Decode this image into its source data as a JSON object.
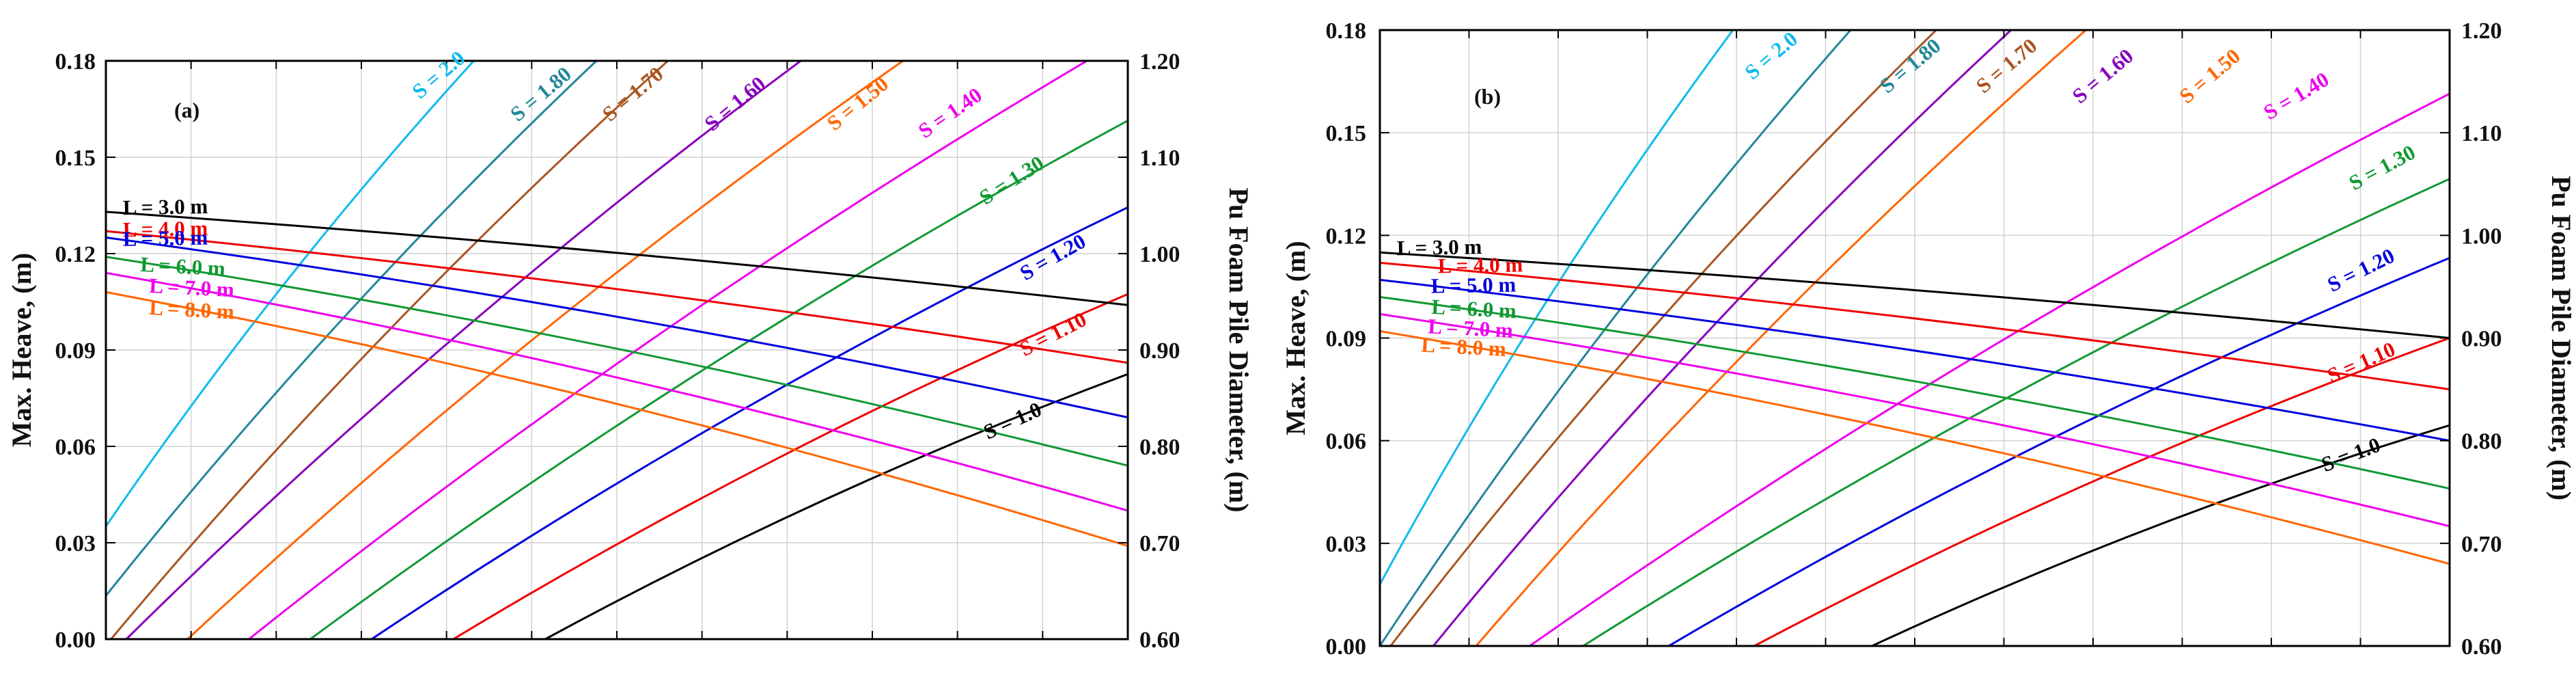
{
  "chart_data": [
    {
      "type": "line",
      "panel": "(a)",
      "ylabel": "Max. Heave, (m)",
      "y2label": "Pu Foam Pile Diameter, (m)",
      "xlabel": "",
      "x": [
        0,
        1
      ],
      "xlim": [
        0,
        1
      ],
      "ylim": [
        0,
        0.18
      ],
      "y2lim": [
        0.6,
        1.2
      ],
      "yticks": [
        "0.00",
        "0.03",
        "0.06",
        "0.09",
        "0.12",
        "0.15",
        "0.18"
      ],
      "y2ticks": [
        "0.60",
        "0.70",
        "0.80",
        "0.90",
        "1.00",
        "1.10",
        "1.20"
      ],
      "grid": true,
      "heave_series": [
        {
          "name": "L = 3.0 m",
          "color": "#000000",
          "values": [
            0.133,
            0.104
          ]
        },
        {
          "name": "L = 4.0 m",
          "color": "#ee0000",
          "values": [
            0.127,
            0.086
          ]
        },
        {
          "name": "L = 5.0 m",
          "color": "#0000dd",
          "values": [
            0.125,
            0.069
          ]
        },
        {
          "name": "L = 6.0 m",
          "color": "#119933",
          "values": [
            0.119,
            0.054
          ]
        },
        {
          "name": "L = 7.0 m",
          "color": "#ee00ee",
          "values": [
            0.114,
            0.04
          ]
        },
        {
          "name": "L = 8.0 m",
          "color": "#ff6600",
          "values": [
            0.108,
            0.029
          ]
        }
      ],
      "diameter_series": [
        {
          "name": "S = 2.0",
          "color": "#11bbee",
          "x": [
            0,
            0.36
          ],
          "values": [
            0.717,
            1.2
          ]
        },
        {
          "name": "S = 1.80",
          "color": "#228899",
          "x": [
            0,
            0.48
          ],
          "values": [
            0.645,
            1.2
          ]
        },
        {
          "name": "S = 1.70",
          "color": "#aa5522",
          "x": [
            0.005,
            0.55
          ],
          "values": [
            0.6,
            1.2
          ]
        },
        {
          "name": "S = 1.60",
          "color": "#8800bb",
          "x": [
            0.02,
            0.68
          ],
          "values": [
            0.6,
            1.2
          ]
        },
        {
          "name": "S = 1.50",
          "color": "#ff6600",
          "x": [
            0.08,
            0.78
          ],
          "values": [
            0.6,
            1.2
          ]
        },
        {
          "name": "S = 1.40",
          "color": "#ee00ee",
          "x": [
            0.14,
            0.96
          ],
          "values": [
            0.6,
            1.2
          ]
        },
        {
          "name": "S = 1.30",
          "color": "#119933",
          "x": [
            0.2,
            1.0
          ],
          "values": [
            0.6,
            1.138
          ]
        },
        {
          "name": "S = 1.20",
          "color": "#0000dd",
          "x": [
            0.26,
            1.0
          ],
          "values": [
            0.6,
            1.048
          ]
        },
        {
          "name": "S = 1.10",
          "color": "#ee0000",
          "x": [
            0.34,
            1.0
          ],
          "values": [
            0.6,
            0.958
          ]
        },
        {
          "name": "S = 1.0",
          "color": "#000000",
          "x": [
            0.43,
            1.0
          ],
          "values": [
            0.6,
            0.875
          ]
        }
      ]
    },
    {
      "type": "line",
      "panel": "(b)",
      "ylabel": "Max. Heave, (m)",
      "y2label": "Pu Foam Pile Diameter, (m)",
      "xlabel": "",
      "x": [
        0,
        1
      ],
      "xlim": [
        0,
        1
      ],
      "ylim": [
        0,
        0.18
      ],
      "y2lim": [
        0.6,
        1.2
      ],
      "yticks": [
        "0.00",
        "0.03",
        "0.06",
        "0.09",
        "0.12",
        "0.15",
        "0.18"
      ],
      "y2ticks": [
        "0.60",
        "0.70",
        "0.80",
        "0.90",
        "1.00",
        "1.10",
        "1.20"
      ],
      "grid": true,
      "heave_series": [
        {
          "name": "L = 3.0 m",
          "color": "#000000",
          "values": [
            0.115,
            0.09
          ]
        },
        {
          "name": "L = 4.0 m",
          "color": "#ee0000",
          "values": [
            0.112,
            0.075
          ]
        },
        {
          "name": "L = 5.0 m",
          "color": "#0000dd",
          "values": [
            0.107,
            0.06
          ]
        },
        {
          "name": "L = 6.0 m",
          "color": "#119933",
          "values": [
            0.102,
            0.046
          ]
        },
        {
          "name": "L = 7.0 m",
          "color": "#ee00ee",
          "values": [
            0.097,
            0.035
          ]
        },
        {
          "name": "L = 8.0 m",
          "color": "#ff6600",
          "values": [
            0.092,
            0.024
          ]
        }
      ],
      "diameter_series": [
        {
          "name": "S = 2.0",
          "color": "#11bbee",
          "x": [
            0,
            0.33
          ],
          "values": [
            0.66,
            1.2
          ]
        },
        {
          "name": "S = 1.80",
          "color": "#228899",
          "x": [
            0,
            0.44
          ],
          "values": [
            0.6,
            1.2
          ]
        },
        {
          "name": "S = 1.70",
          "color": "#aa5522",
          "x": [
            0.01,
            0.52
          ],
          "values": [
            0.6,
            1.2
          ]
        },
        {
          "name": "S = 1.60",
          "color": "#8800bb",
          "x": [
            0.05,
            0.59
          ],
          "values": [
            0.6,
            1.2
          ]
        },
        {
          "name": "S = 1.50",
          "color": "#ff6600",
          "x": [
            0.09,
            0.66
          ],
          "values": [
            0.6,
            1.2
          ]
        },
        {
          "name": "S = 1.40",
          "color": "#ee00ee",
          "x": [
            0.14,
            1.0
          ],
          "values": [
            0.6,
            1.138
          ]
        },
        {
          "name": "S = 1.30",
          "color": "#119933",
          "x": [
            0.19,
            1.0
          ],
          "values": [
            0.6,
            1.055
          ]
        },
        {
          "name": "S = 1.20",
          "color": "#0000dd",
          "x": [
            0.27,
            1.0
          ],
          "values": [
            0.6,
            0.978
          ]
        },
        {
          "name": "S = 1.10",
          "color": "#ee0000",
          "x": [
            0.35,
            1.0
          ],
          "values": [
            0.6,
            0.9
          ]
        },
        {
          "name": "S = 1.0",
          "color": "#000000",
          "x": [
            0.46,
            1.0
          ],
          "values": [
            0.6,
            0.815
          ]
        }
      ]
    }
  ]
}
